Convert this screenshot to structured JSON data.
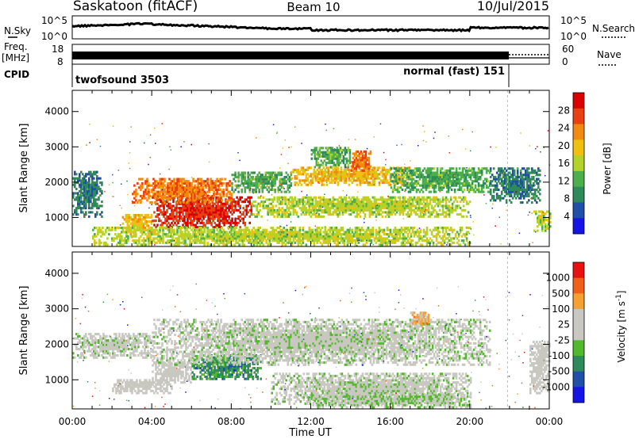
{
  "header": {
    "station": "Saskatoon (fitACF)",
    "beam": "Beam 10",
    "date": "10/Jul/2015"
  },
  "strips": {
    "nsky_label": "N.Sky",
    "nsearch_label": "N.Search",
    "nsky_ticks": [
      "10^5",
      "10^0"
    ],
    "freq_label": "Freq.",
    "freq_unit": "[MHz]",
    "freq_ticks": [
      "18",
      "8"
    ],
    "nave_label": "Nave",
    "nave_ticks": [
      "60",
      "0"
    ],
    "cpid_label": "CPID",
    "cpid_programs": [
      {
        "name": "twofsound 3503",
        "start_hour": 0,
        "end_hour": 21.9
      },
      {
        "name": "normal (fast) 151",
        "start_hour": 21.9,
        "end_hour": 24
      }
    ]
  },
  "axes": {
    "x_ticks": [
      "00:00",
      "04:00",
      "08:00",
      "12:00",
      "16:00",
      "20:00",
      "00:00"
    ],
    "x_tick_hours": [
      0,
      4,
      8,
      12,
      16,
      20,
      24
    ],
    "xlabel": "Time UT",
    "y_ticks": [
      "1000",
      "2000",
      "3000",
      "4000"
    ],
    "y_tick_values": [
      1000,
      2000,
      3000,
      4000
    ],
    "ylabel": "Slant Range [km]",
    "ylim": [
      180,
      4600
    ],
    "xlim": [
      0,
      24
    ]
  },
  "colors": {
    "power": [
      "#1414e6",
      "#1f4fa8",
      "#2e8a5a",
      "#4caf4c",
      "#b4d22a",
      "#f0c010",
      "#f08a10",
      "#e84010",
      "#d80000"
    ],
    "velocity": [
      "#e81010",
      "#f06018",
      "#f5a030",
      "#c8c8c0",
      "#c8c8c0",
      "#54b82c",
      "#2e8a5a",
      "#1f4fa8",
      "#1414e6"
    ]
  },
  "chart_data": [
    {
      "type": "heatmap",
      "title": "Power",
      "xlabel": "Time UT",
      "ylabel": "Slant Range [km]",
      "colorbar_label": "Power [dB]",
      "colorbar_ticks": [
        "28",
        "24",
        "20",
        "16",
        "12",
        "8",
        "4"
      ],
      "colorbar_range": [
        0,
        32
      ],
      "regions": [
        {
          "t0": 0,
          "t1": 1.5,
          "r0": 1000,
          "r1": 2300,
          "value": 8
        },
        {
          "t0": 2.5,
          "t1": 4,
          "r0": 500,
          "r1": 1100,
          "value": 20
        },
        {
          "t0": 4,
          "t1": 9,
          "r0": 700,
          "r1": 1600,
          "value": 28
        },
        {
          "t0": 3,
          "t1": 8,
          "r0": 1400,
          "r1": 2100,
          "value": 24
        },
        {
          "t0": 8,
          "t1": 11,
          "r0": 1700,
          "r1": 2300,
          "value": 12
        },
        {
          "t0": 11,
          "t1": 17,
          "r0": 1900,
          "r1": 2400,
          "value": 20
        },
        {
          "t0": 14,
          "t1": 15,
          "r0": 2300,
          "r1": 2900,
          "value": 24
        },
        {
          "t0": 12,
          "t1": 14,
          "r0": 2400,
          "r1": 3000,
          "value": 12
        },
        {
          "t0": 16,
          "t1": 21,
          "r0": 1700,
          "r1": 2400,
          "value": 12
        },
        {
          "t0": 21,
          "t1": 23.5,
          "r0": 1400,
          "r1": 2400,
          "value": 8
        },
        {
          "t0": 9,
          "t1": 20,
          "r0": 1000,
          "r1": 1600,
          "value": 16
        },
        {
          "t0": 1,
          "t1": 20,
          "r0": 200,
          "r1": 700,
          "value": 16
        },
        {
          "t0": 23.2,
          "t1": 24,
          "r0": 600,
          "r1": 1200,
          "value": 16
        }
      ]
    },
    {
      "type": "heatmap",
      "title": "Velocity",
      "xlabel": "Time UT",
      "ylabel": "Slant Range [km]",
      "colorbar_label": "Velocity [m s^-1]",
      "colorbar_ticks": [
        "1000",
        "500",
        "100",
        "25",
        "-25",
        "-100",
        "-500",
        "-1000"
      ],
      "colorbar_range": [
        -1200,
        1200
      ],
      "regions": [
        {
          "t0": 0,
          "t1": 4,
          "r0": 1600,
          "r1": 2300,
          "value": 0
        },
        {
          "t0": 2,
          "t1": 5,
          "r0": 600,
          "r1": 1000,
          "value": 100
        },
        {
          "t0": 4,
          "t1": 6,
          "r0": 900,
          "r1": 1500,
          "value": 100
        },
        {
          "t0": 6,
          "t1": 9.5,
          "r0": 1000,
          "r1": 1700,
          "value": -500
        },
        {
          "t0": 4,
          "t1": 21,
          "r0": 1400,
          "r1": 2700,
          "value": 0
        },
        {
          "t0": 10,
          "t1": 20,
          "r0": 300,
          "r1": 1200,
          "value": 0
        },
        {
          "t0": 12,
          "t1": 20,
          "r0": 200,
          "r1": 600,
          "value": -100
        },
        {
          "t0": 17,
          "t1": 18,
          "r0": 2500,
          "r1": 2900,
          "value": 500
        },
        {
          "t0": 23,
          "t1": 24,
          "r0": 600,
          "r1": 2100,
          "value": 100
        }
      ]
    }
  ]
}
